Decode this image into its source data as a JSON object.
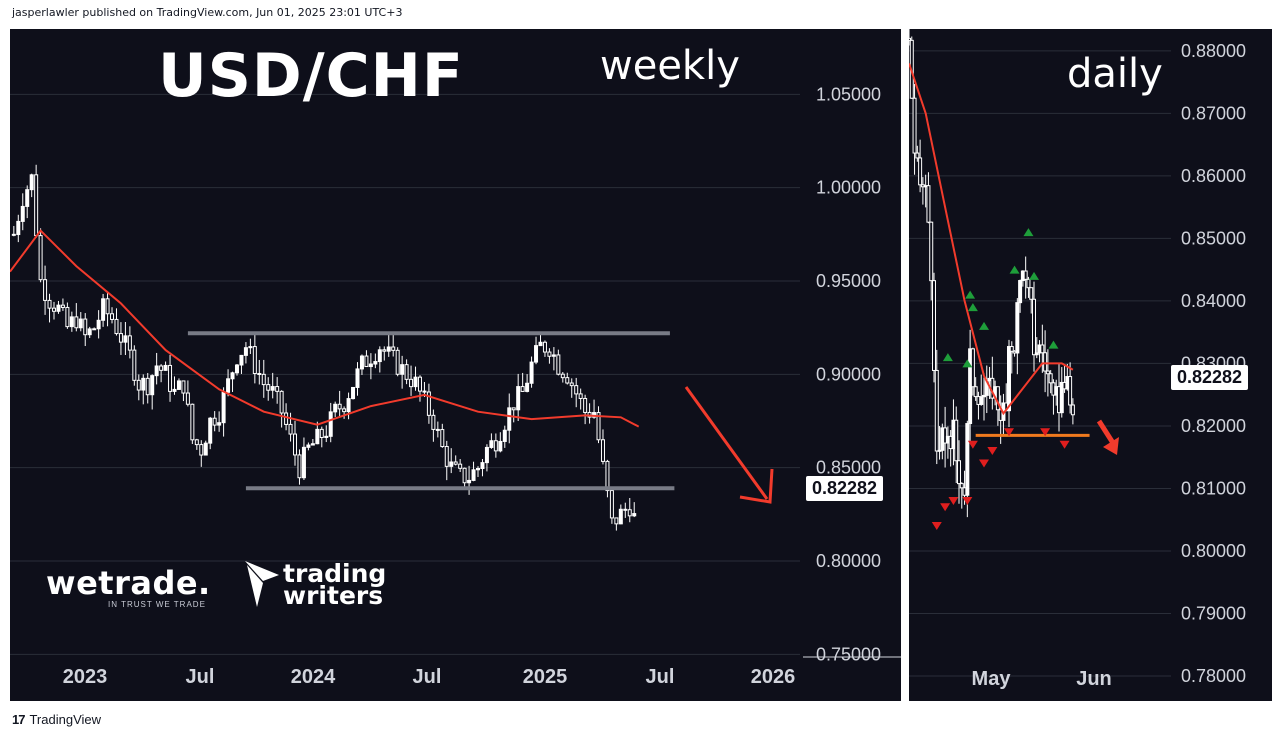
{
  "header": {
    "publisher": "jasperlawler published on TradingView.com, Jun 01, 2025 23:01 UTC+3"
  },
  "footer": {
    "brand": "TradingView",
    "brand_icon": "tradingview-logo-icon"
  },
  "colors": {
    "background": "#0e0f1a",
    "candle": "#ffffff",
    "ma_line": "#f23b2c",
    "range_lines": "#787b86",
    "arrow": "#f23b2c",
    "support_daily": "#f07a1e",
    "marker_up": "#1e9e3a",
    "marker_down": "#e01e1e",
    "grid": "#2a2e39"
  },
  "weekly": {
    "symbol_title": "USD/CHF",
    "timeframe_label": "weekly",
    "price_tag": "0.82282",
    "logos": {
      "wetrade": "wetrade.",
      "wetrade_tagline": "IN TRUST WE TRADE",
      "trading_writers_line1": "trading",
      "trading_writers_line2": "writers"
    }
  },
  "daily": {
    "timeframe_label": "daily",
    "price_tag": "0.82282"
  },
  "chart_data": [
    {
      "type": "candlestick",
      "title": "USD/CHF",
      "subtitle": "weekly",
      "x_tick_labels": [
        "2023",
        "Jul",
        "2024",
        "Jul",
        "2025",
        "Jul",
        "2026"
      ],
      "y_tick_labels": [
        "1.05000",
        "1.00000",
        "0.95000",
        "0.90000",
        "0.85000",
        "0.80000",
        "0.75000"
      ],
      "ylim": [
        0.725,
        1.085
      ],
      "xlim": [
        "2022-09-20",
        "2026-02-10"
      ],
      "last_price": 0.82282,
      "grid": true,
      "range_resistance": {
        "value": 0.922,
        "from": "2023-06-26",
        "to": "2025-07-21"
      },
      "range_support": {
        "value": 0.839,
        "from": "2023-09-25",
        "to": "2025-07-28"
      },
      "close_series": {
        "dates": [
          "2022-09-26",
          "2022-10-10",
          "2022-10-24",
          "2022-11-07",
          "2022-11-21",
          "2022-12-05",
          "2022-12-19",
          "2023-01-02",
          "2023-01-16",
          "2023-01-30",
          "2023-02-13",
          "2023-02-27",
          "2023-03-13",
          "2023-03-27",
          "2023-04-10",
          "2023-04-24",
          "2023-05-08",
          "2023-05-22",
          "2023-06-05",
          "2023-06-19",
          "2023-07-03",
          "2023-07-17",
          "2023-07-31",
          "2023-08-14",
          "2023-08-28",
          "2023-09-11",
          "2023-09-25",
          "2023-10-09",
          "2023-10-23",
          "2023-11-06",
          "2023-11-20",
          "2023-12-04",
          "2023-12-18",
          "2024-01-01",
          "2024-01-15",
          "2024-01-29",
          "2024-02-12",
          "2024-02-26",
          "2024-03-11",
          "2024-03-25",
          "2024-04-08",
          "2024-04-22",
          "2024-05-06",
          "2024-05-20",
          "2024-06-03",
          "2024-06-17",
          "2024-07-01",
          "2024-07-15",
          "2024-07-29",
          "2024-08-12",
          "2024-08-26",
          "2024-09-09",
          "2024-09-23",
          "2024-10-07",
          "2024-10-21",
          "2024-11-04",
          "2024-11-18",
          "2024-12-02",
          "2024-12-16",
          "2024-12-30",
          "2025-01-13",
          "2025-01-27",
          "2025-02-10",
          "2025-02-24",
          "2025-03-10",
          "2025-03-24",
          "2025-04-07",
          "2025-04-21",
          "2025-05-05",
          "2025-05-19",
          "2025-05-26"
        ],
        "values": [
          0.975,
          0.995,
          1.005,
          0.95,
          0.94,
          0.935,
          0.925,
          0.93,
          0.92,
          0.925,
          0.935,
          0.93,
          0.92,
          0.91,
          0.895,
          0.895,
          0.905,
          0.9,
          0.89,
          0.895,
          0.865,
          0.86,
          0.875,
          0.88,
          0.895,
          0.91,
          0.915,
          0.905,
          0.895,
          0.89,
          0.88,
          0.865,
          0.85,
          0.86,
          0.865,
          0.87,
          0.88,
          0.885,
          0.895,
          0.905,
          0.91,
          0.915,
          0.91,
          0.905,
          0.9,
          0.895,
          0.885,
          0.875,
          0.86,
          0.85,
          0.845,
          0.845,
          0.85,
          0.86,
          0.865,
          0.875,
          0.885,
          0.89,
          0.905,
          0.915,
          0.915,
          0.905,
          0.9,
          0.89,
          0.88,
          0.88,
          0.85,
          0.82,
          0.825,
          0.83,
          0.823
        ]
      },
      "ma_series": {
        "dates": [
          "2022-09-20",
          "2022-11-07",
          "2023-01-02",
          "2023-03-13",
          "2023-05-22",
          "2023-08-14",
          "2023-10-23",
          "2024-01-15",
          "2024-04-08",
          "2024-07-01",
          "2024-09-23",
          "2024-12-16",
          "2025-03-10",
          "2025-05-05",
          "2025-06-02"
        ],
        "values": [
          0.955,
          0.977,
          0.958,
          0.938,
          0.913,
          0.892,
          0.88,
          0.873,
          0.883,
          0.889,
          0.88,
          0.876,
          0.878,
          0.877,
          0.872
        ]
      },
      "annotations": [
        "down-arrow"
      ]
    },
    {
      "type": "candlestick",
      "subtitle": "daily",
      "x_tick_labels": [
        "May",
        "Jun"
      ],
      "y_tick_labels": [
        "0.88000",
        "0.87000",
        "0.86000",
        "0.85000",
        "0.84000",
        "0.83000",
        "0.82000",
        "0.81000",
        "0.80000",
        "0.79000",
        "0.78000"
      ],
      "ylim": [
        0.776,
        0.8835
      ],
      "xlim": [
        "2025-04-01",
        "2025-06-12"
      ],
      "last_price": 0.82282,
      "grid": true,
      "support_line": {
        "value": 0.8185,
        "from": "2025-04-25",
        "to": "2025-06-05"
      },
      "close_series": {
        "dates": [
          "2025-04-01",
          "2025-04-02",
          "2025-04-03",
          "2025-04-04",
          "2025-04-07",
          "2025-04-08",
          "2025-04-09",
          "2025-04-10",
          "2025-04-11",
          "2025-04-14",
          "2025-04-15",
          "2025-04-16",
          "2025-04-17",
          "2025-04-18",
          "2025-04-21",
          "2025-04-22",
          "2025-04-23",
          "2025-04-24",
          "2025-04-25",
          "2025-04-28",
          "2025-04-29",
          "2025-04-30",
          "2025-05-01",
          "2025-05-02",
          "2025-05-05",
          "2025-05-06",
          "2025-05-07",
          "2025-05-08",
          "2025-05-09",
          "2025-05-12",
          "2025-05-13",
          "2025-05-14",
          "2025-05-15",
          "2025-05-16",
          "2025-05-19",
          "2025-05-20",
          "2025-05-21",
          "2025-05-22",
          "2025-05-23",
          "2025-05-26",
          "2025-05-27",
          "2025-05-28",
          "2025-05-29",
          "2025-05-30"
        ],
        "values": [
          0.882,
          0.873,
          0.862,
          0.86,
          0.857,
          0.853,
          0.846,
          0.826,
          0.815,
          0.818,
          0.82,
          0.814,
          0.819,
          0.815,
          0.81,
          0.819,
          0.83,
          0.828,
          0.827,
          0.825,
          0.825,
          0.825,
          0.827,
          0.825,
          0.822,
          0.822,
          0.83,
          0.833,
          0.834,
          0.847,
          0.842,
          0.84,
          0.838,
          0.833,
          0.832,
          0.83,
          0.828,
          0.826,
          0.822,
          0.826,
          0.828,
          0.825,
          0.823,
          0.823
        ]
      },
      "ma_series": {
        "dates": [
          "2025-04-01",
          "2025-04-07",
          "2025-04-14",
          "2025-04-21",
          "2025-04-28",
          "2025-05-05",
          "2025-05-12",
          "2025-05-19",
          "2025-05-26",
          "2025-05-30"
        ],
        "values": [
          0.878,
          0.87,
          0.855,
          0.84,
          0.828,
          0.822,
          0.826,
          0.83,
          0.83,
          0.829
        ]
      },
      "markers_up": [
        "2025-04-15",
        "2025-04-22",
        "2025-04-23",
        "2025-04-24",
        "2025-04-28",
        "2025-05-09",
        "2025-05-14",
        "2025-05-16",
        "2025-05-23"
      ],
      "markers_down": [
        "2025-04-11",
        "2025-04-14",
        "2025-04-17",
        "2025-04-22",
        "2025-04-24",
        "2025-04-28",
        "2025-05-01",
        "2025-05-07",
        "2025-05-20",
        "2025-05-27"
      ],
      "annotations": [
        "down-arrow"
      ]
    }
  ]
}
